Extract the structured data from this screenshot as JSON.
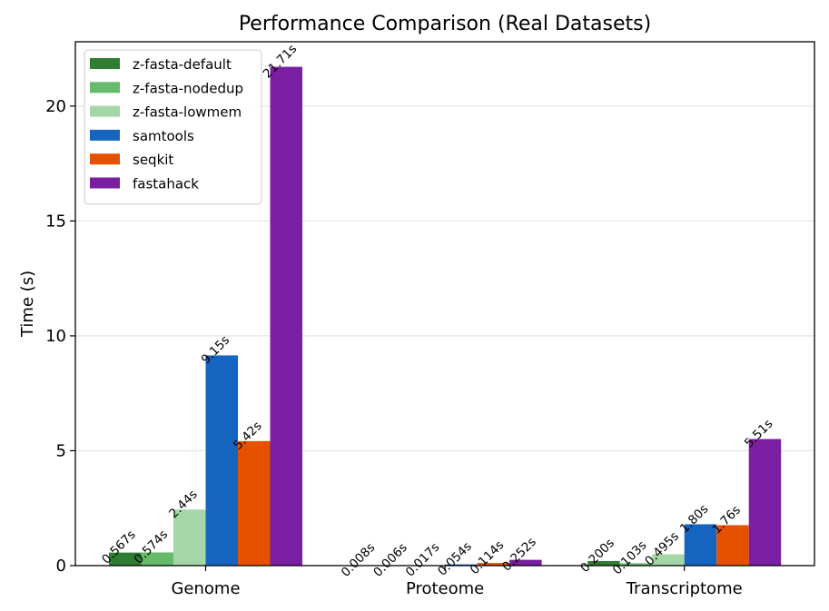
{
  "chart_data": {
    "type": "bar",
    "title": "Performance Comparison (Real Datasets)",
    "xlabel": "",
    "ylabel": "Time (s)",
    "ylim": [
      0,
      22.8
    ],
    "yticks": [
      0,
      5,
      10,
      15,
      20
    ],
    "grid": "horizontal",
    "legend_position": "top-left",
    "categories": [
      "Genome",
      "Proteome",
      "Transcriptome"
    ],
    "series": [
      {
        "name": "z-fasta-default",
        "color": "#2e7d32",
        "values": [
          0.567,
          0.008,
          0.2
        ],
        "labels": [
          "0.567s",
          "0.008s",
          "0.200s"
        ]
      },
      {
        "name": "z-fasta-nodedup",
        "color": "#66bb6a",
        "values": [
          0.574,
          0.006,
          0.103
        ],
        "labels": [
          "0.574s",
          "0.006s",
          "0.103s"
        ]
      },
      {
        "name": "z-fasta-lowmem",
        "color": "#a5d6a7",
        "values": [
          2.44,
          0.017,
          0.495
        ],
        "labels": [
          "2.44s",
          "0.017s",
          "0.495s"
        ]
      },
      {
        "name": "samtools",
        "color": "#1565c0",
        "values": [
          9.15,
          0.054,
          1.8
        ],
        "labels": [
          "9.15s",
          "0.054s",
          "1.80s"
        ]
      },
      {
        "name": "seqkit",
        "color": "#e65100",
        "values": [
          5.42,
          0.114,
          1.76
        ],
        "labels": [
          "5.42s",
          "0.114s",
          "1.76s"
        ]
      },
      {
        "name": "fastahack",
        "color": "#7b1fa2",
        "values": [
          21.71,
          0.252,
          5.51
        ],
        "labels": [
          "21.71s",
          "0.252s",
          "5.51s"
        ]
      }
    ]
  }
}
